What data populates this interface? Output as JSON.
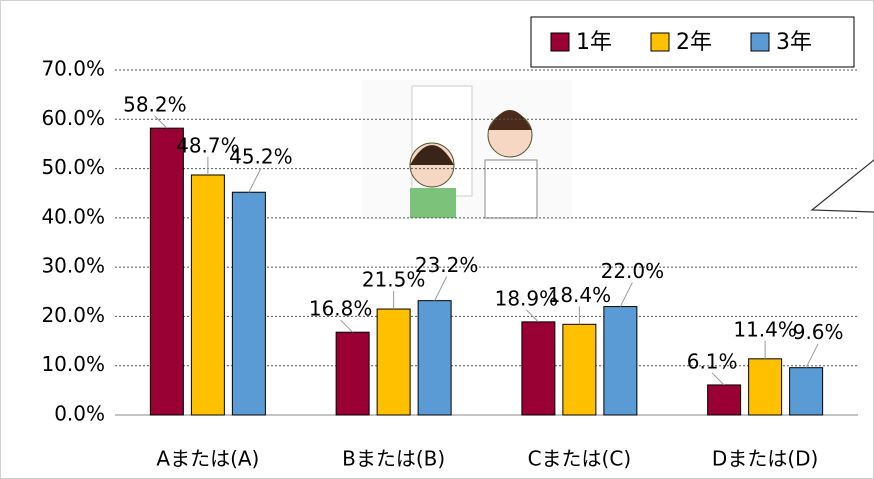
{
  "chart_data": {
    "type": "bar",
    "categories": [
      "Aまたは(A)",
      "Bまたは(B)",
      "Cまたは(C)",
      "Dまたは(D)"
    ],
    "series": [
      {
        "name": "1年",
        "color": "#990033",
        "values": [
          58.2,
          16.8,
          18.9,
          6.1
        ],
        "value_labels": [
          "58.2%",
          "16.8%",
          "18.9%",
          "6.1%"
        ]
      },
      {
        "name": "2年",
        "color": "#ffc000",
        "values": [
          48.7,
          21.5,
          18.4,
          11.4
        ],
        "value_labels": [
          "48.7%",
          "21.5%",
          "18.4%",
          "11.4%"
        ]
      },
      {
        "name": "3年",
        "color": "#5b9bd5",
        "values": [
          45.2,
          23.2,
          22.0,
          9.6
        ],
        "value_labels": [
          "45.2%",
          "23.2%",
          "22.0%",
          "9.6%"
        ]
      }
    ],
    "ylim": [
      0,
      70
    ],
    "yticks": [
      {
        "value": 0,
        "label": "0.0%"
      },
      {
        "value": 10,
        "label": "10.0%"
      },
      {
        "value": 20,
        "label": "20.0%"
      },
      {
        "value": 30,
        "label": "30.0%"
      },
      {
        "value": 40,
        "label": "40.0%"
      },
      {
        "value": 50,
        "label": "50.0%"
      },
      {
        "value": 60,
        "label": "60.0%"
      },
      {
        "value": 70,
        "label": "70.0%"
      }
    ],
    "grid": true,
    "legend": "top-right"
  }
}
